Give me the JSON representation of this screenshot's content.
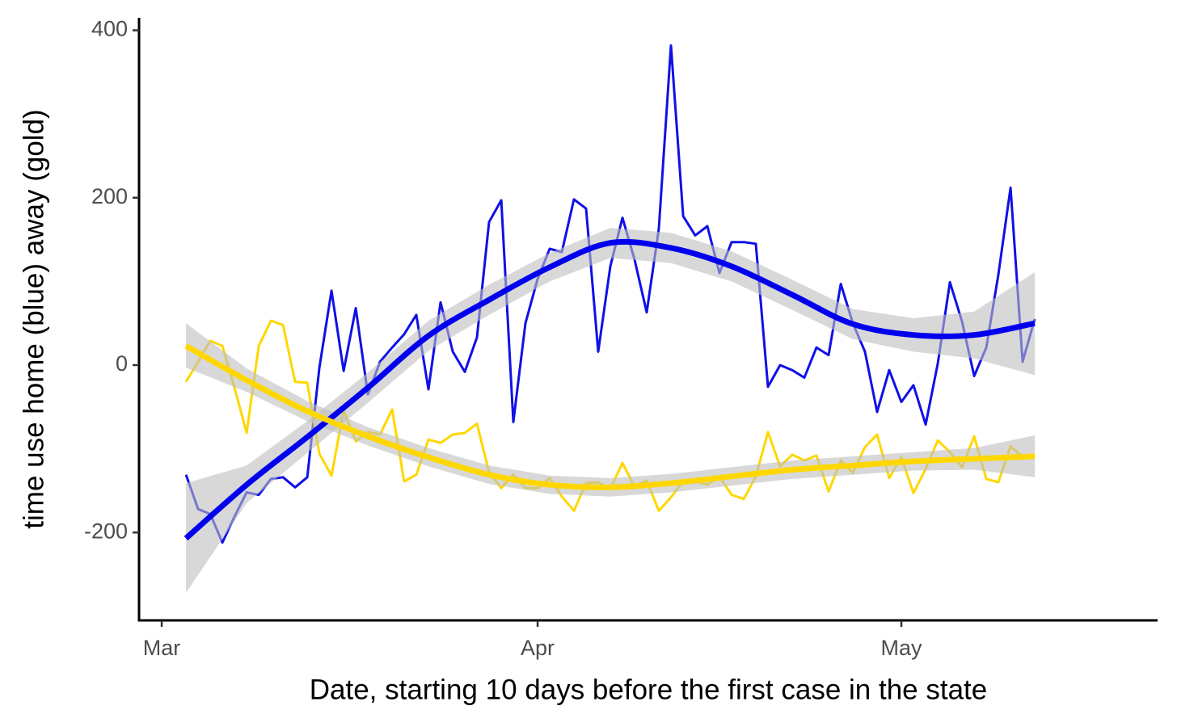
{
  "chart_data": {
    "type": "line",
    "xlabel": "Date, starting 10 days before the first case in the state",
    "ylabel": "time use home (blue) away (gold)",
    "x": [
      2,
      3,
      4,
      5,
      6,
      7,
      8,
      9,
      10,
      11,
      12,
      13,
      14,
      15,
      16,
      17,
      18,
      19,
      20,
      21,
      22,
      23,
      24,
      25,
      26,
      27,
      28,
      29,
      30,
      31,
      32,
      33,
      34,
      35,
      36,
      37,
      38,
      39,
      40,
      41,
      42,
      43,
      44,
      45,
      46,
      47,
      48,
      49,
      50,
      51,
      52,
      53,
      54,
      55,
      56,
      57,
      58,
      59,
      60,
      61,
      62,
      63,
      64,
      65,
      66,
      67,
      68,
      69,
      70,
      71,
      72
    ],
    "series": [
      {
        "color": "#1010e8",
        "values": [
          -131,
          -172,
          -178,
          -212,
          -181,
          -152,
          -155,
          -136,
          -134,
          -146,
          -134,
          -3,
          89,
          -7,
          68,
          -35,
          4,
          21,
          37,
          60,
          -29,
          75,
          16,
          -8,
          33,
          171,
          197,
          -68,
          50,
          103,
          139,
          135,
          198,
          187,
          16,
          118,
          176,
          126,
          63,
          163,
          382,
          178,
          155,
          166,
          110,
          147,
          147,
          145,
          -26,
          0,
          -6,
          -15,
          21,
          12,
          97,
          50,
          16,
          -56,
          -6,
          -44,
          -24,
          -71,
          2,
          99,
          52,
          -13,
          21,
          108,
          212,
          4,
          55
        ]
      },
      {
        "color": "#ffd700",
        "values": [
          -20,
          4,
          29,
          23,
          -27,
          -81,
          23,
          53,
          48,
          -20,
          -21,
          -106,
          -132,
          -54,
          -91,
          -80,
          -83,
          -53,
          -139,
          -131,
          -89,
          -93,
          -83,
          -81,
          -70,
          -128,
          -147,
          -131,
          -147,
          -147,
          -135,
          -157,
          -174,
          -141,
          -140,
          -148,
          -117,
          -145,
          -138,
          -174,
          -158,
          -138,
          -139,
          -143,
          -133,
          -155,
          -160,
          -133,
          -80,
          -121,
          -107,
          -114,
          -108,
          -151,
          -114,
          -129,
          -98,
          -83,
          -135,
          -110,
          -153,
          -124,
          -90,
          -104,
          -122,
          -85,
          -136,
          -140,
          -97,
          -110,
          -110
        ]
      }
    ],
    "smooth": [
      {
        "color": "#0000ee",
        "x": [
          2,
          7,
          12,
          17,
          22,
          27,
          32,
          37,
          42,
          47,
          52,
          57,
          62,
          67,
          72
        ],
        "values": [
          -207,
          -143,
          -86,
          -27,
          35,
          78,
          117,
          146,
          140,
          118,
          84,
          49,
          36,
          36,
          50
        ],
        "lower": [
          -272,
          -165,
          -105,
          -45,
          17,
          60,
          100,
          128,
          122,
          100,
          66,
          31,
          16,
          8,
          -12
        ],
        "upper": [
          -141,
          -120,
          -67,
          -9,
          53,
          96,
          134,
          164,
          158,
          136,
          102,
          67,
          56,
          64,
          111
        ]
      },
      {
        "color": "#ffd700",
        "x": [
          2,
          7,
          12,
          17,
          22,
          27,
          32,
          37,
          42,
          47,
          52,
          57,
          62,
          67,
          72
        ],
        "values": [
          23,
          -18,
          -55,
          -85,
          -110,
          -131,
          -143,
          -146,
          -141,
          -133,
          -125,
          -120,
          -115,
          -112,
          -109
        ],
        "lower": [
          -3,
          -32,
          -67,
          -96,
          -121,
          -142,
          -154,
          -157,
          -152,
          -144,
          -136,
          -131,
          -126,
          -125,
          -134
        ],
        "upper": [
          50,
          -4,
          -43,
          -74,
          -99,
          -120,
          -132,
          -135,
          -130,
          -122,
          -114,
          -109,
          -104,
          -99,
          -84
        ]
      }
    ],
    "ribbon_color": "#bebebe",
    "xlim": [
      -1.87,
      82.13
    ],
    "xticks": [
      {
        "value": 0,
        "label": "Mar"
      },
      {
        "value": 31,
        "label": "Apr"
      },
      {
        "value": 61,
        "label": "May"
      }
    ],
    "ylim": [
      -305,
      415
    ],
    "yticks": [
      -200,
      0,
      200,
      400
    ],
    "grid": false
  }
}
